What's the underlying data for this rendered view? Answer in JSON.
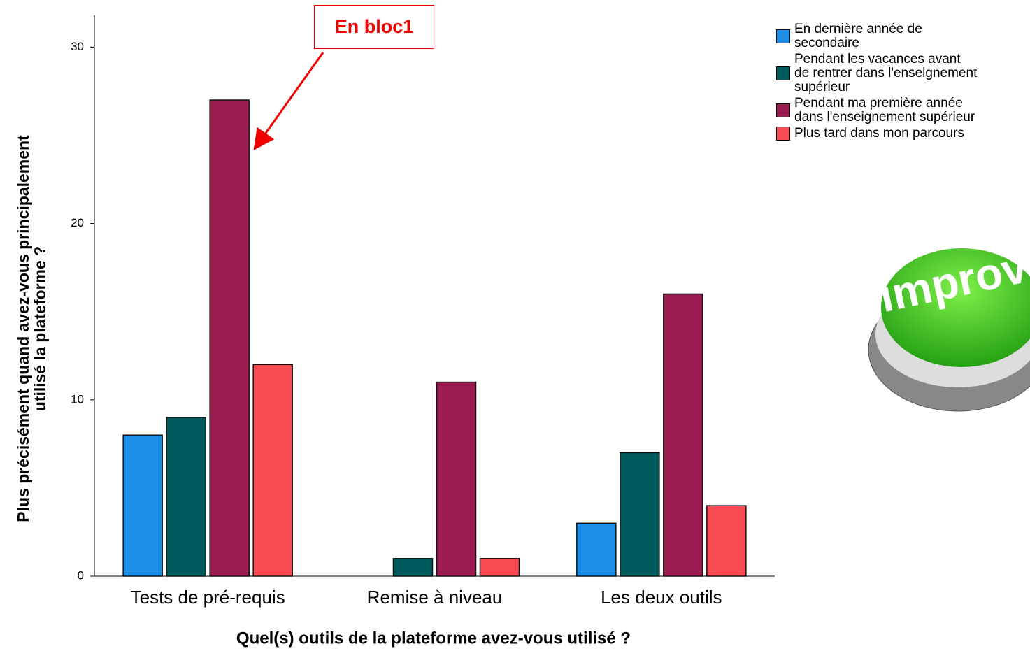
{
  "chart_data": {
    "type": "bar",
    "x_label": "Quel(s) outils de la plateforme avez-vous utilisé ?",
    "y_label": "Plus précisément quand avez-vous principalement\nutilisé la plateforme ?",
    "categories": [
      "Tests de pré-requis",
      "Remise à niveau",
      "Les deux outils"
    ],
    "series": [
      {
        "name": "En dernière année de\nsecondaire",
        "color": "#1a8ee8",
        "values": [
          8,
          0,
          3
        ]
      },
      {
        "name": "Pendant les vacances avant\nde rentrer dans l'enseignement\nsupérieur",
        "color": "#005c5c",
        "values": [
          9,
          1,
          7
        ]
      },
      {
        "name": "Pendant ma première année\ndans l'enseignement supérieur",
        "color": "#9b1a4f",
        "values": [
          27,
          11,
          16
        ]
      },
      {
        "name": "Plus tard dans mon parcours",
        "color": "#f94c55",
        "values": [
          12,
          1,
          4
        ]
      }
    ],
    "ylim": [
      0,
      31.8
    ],
    "yticks": [
      0,
      10,
      20,
      30
    ],
    "annotation": "En bloc1",
    "image_text": "improv"
  }
}
